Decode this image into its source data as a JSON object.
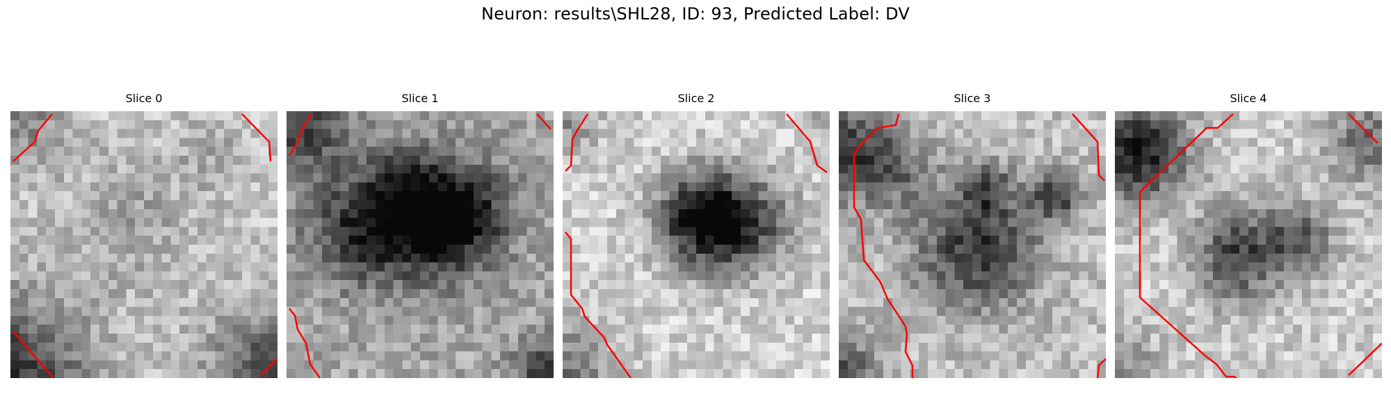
{
  "figure": {
    "title": "Neuron: results\\SHL28, ID: 93, Predicted Label: DV"
  },
  "panels": [
    {
      "title": "Slice 0"
    },
    {
      "title": "Slice 1"
    },
    {
      "title": "Slice 2"
    },
    {
      "title": "Slice 3"
    },
    {
      "title": "Slice 4"
    }
  ],
  "colors": {
    "contour": "#ff0000",
    "colormap": "gray"
  }
}
